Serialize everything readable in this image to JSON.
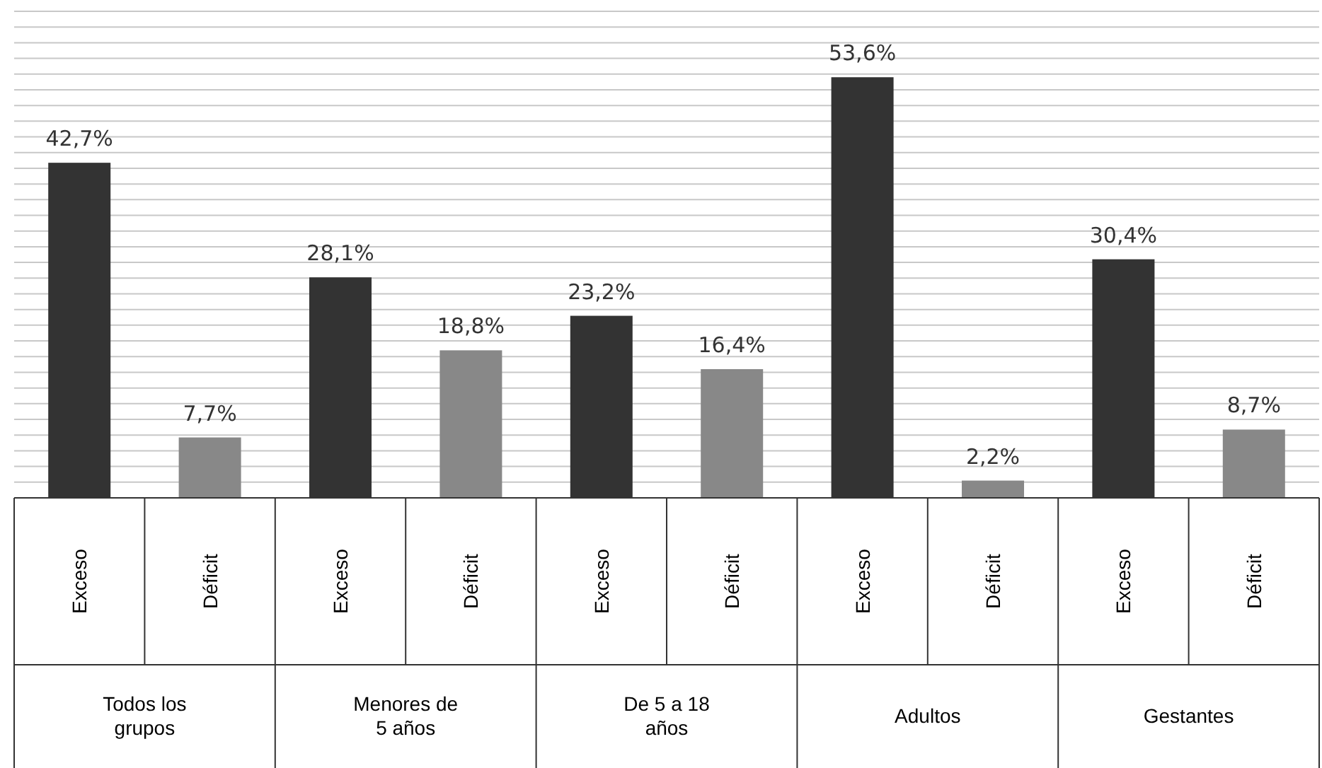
{
  "chart_data": {
    "type": "bar",
    "categories": [
      "Todos los grupos",
      "Menores de 5 años",
      "De 5 a 18 años",
      "Adultos",
      "Gestantes"
    ],
    "series": [
      {
        "name": "Exceso",
        "color": "#333333",
        "values": [
          42.7,
          28.1,
          23.2,
          53.6,
          30.4
        ],
        "value_labels": [
          "42,7%",
          "28,1%",
          "23,2%",
          "53,6%",
          "30,4%"
        ]
      },
      {
        "name": "Déficit",
        "color": "#888888",
        "values": [
          7.7,
          18.8,
          16.4,
          2.2,
          8.7
        ],
        "value_labels": [
          "7,7%",
          "18,8%",
          "16,4%",
          "2,2%",
          "8,7%"
        ]
      }
    ],
    "ylim": [
      0,
      62
    ],
    "yticks": [
      {
        "value": 0,
        "label": null
      },
      {
        "value": 2,
        "label": null
      },
      {
        "value": 4,
        "label": null
      },
      {
        "value": 6,
        "label": null
      },
      {
        "value": 8,
        "label": null
      },
      {
        "value": 10,
        "label": null
      },
      {
        "value": 12,
        "label": null
      },
      {
        "value": 14,
        "label": null
      },
      {
        "value": 16,
        "label": null
      },
      {
        "value": 18,
        "label": null
      },
      {
        "value": 20,
        "label": null
      },
      {
        "value": 22,
        "label": null
      },
      {
        "value": 24,
        "label": null
      },
      {
        "value": 26,
        "label": null
      },
      {
        "value": 28,
        "label": null
      },
      {
        "value": 30,
        "label": null
      },
      {
        "value": 32,
        "label": null
      },
      {
        "value": 34,
        "label": null
      },
      {
        "value": 36,
        "label": null
      },
      {
        "value": 38,
        "label": null
      },
      {
        "value": 40,
        "label": null
      },
      {
        "value": 42,
        "label": null
      },
      {
        "value": 44,
        "label": null
      },
      {
        "value": 46,
        "label": null
      },
      {
        "value": 48,
        "label": null
      },
      {
        "value": 50,
        "label": null
      },
      {
        "value": 52,
        "label": null
      },
      {
        "value": 54,
        "label": null
      },
      {
        "value": 56,
        "label": null
      },
      {
        "value": 58,
        "label": null
      },
      {
        "value": 60,
        "label": null
      },
      {
        "value": 62,
        "label": null
      }
    ],
    "grid": "y"
  }
}
